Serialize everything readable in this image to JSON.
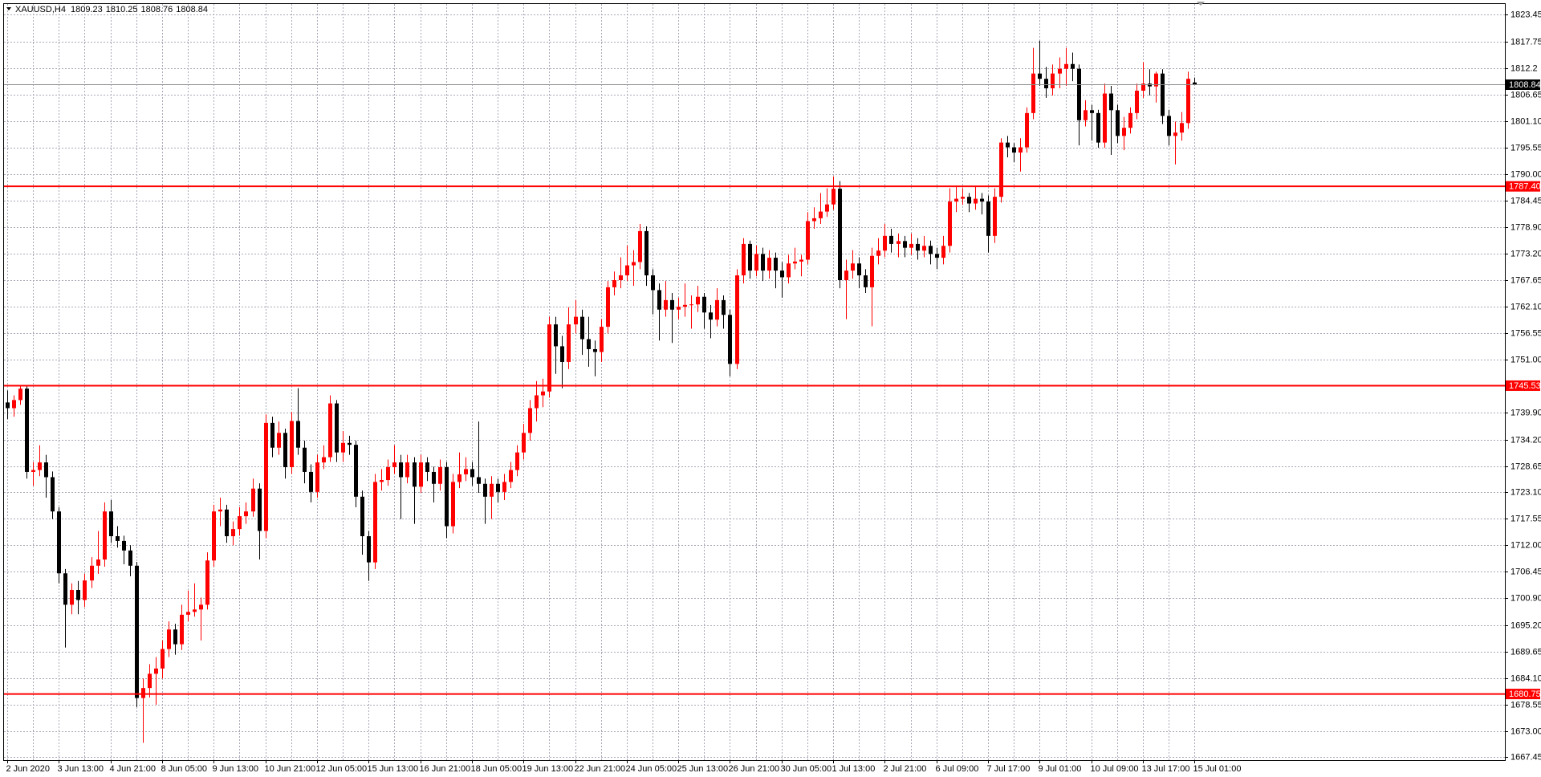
{
  "chart_data": {
    "type": "candlestick",
    "symbol": "XAUUSD,H4",
    "up_color": "#ff0000",
    "down_color": "#000000",
    "grid": true,
    "ylim": [
      1666.85,
      1825.71
    ],
    "yticks": [
      1823.45,
      1817.75,
      1812.2,
      {
        "value": 1806.65,
        "label": "1806.65"
      },
      {
        "value": 1801.1,
        "label": "1801.10"
      },
      1795.55,
      {
        "value": 1790,
        "label": "1790.00"
      },
      1784.45,
      {
        "value": 1778.9,
        "label": "1778.90"
      },
      {
        "value": 1773.2,
        "label": "1773.20"
      },
      1767.65,
      {
        "value": 1762.1,
        "label": "1762.10"
      },
      1756.55,
      {
        "value": 1751,
        "label": "1751.00"
      },
      {
        "value": 1739.9,
        "label": "1739.90"
      },
      {
        "value": 1734.2,
        "label": "1734.20"
      },
      1728.65,
      {
        "value": 1723.1,
        "label": "1723.10"
      },
      1717.55,
      {
        "value": 1712,
        "label": "1712.00"
      },
      1706.45,
      {
        "value": 1700.9,
        "label": "1700.90"
      },
      {
        "value": 1695.2,
        "label": "1695.20"
      },
      1689.65,
      {
        "value": 1684.1,
        "label": "1684.10"
      },
      1678.55,
      {
        "value": 1673,
        "label": "1673.00"
      },
      1667.45
    ],
    "levels": [
      {
        "value": 1787.4,
        "label": "1787.40",
        "color": "#ff0000"
      },
      {
        "value": 1745.53,
        "label": "1745.53",
        "color": "#ff0000"
      },
      {
        "value": 1680.75,
        "label": "1680.75",
        "color": "#ff0000"
      }
    ],
    "categories": [
      "2 Jun 2020",
      null,
      null,
      null,
      null,
      null,
      null,
      null,
      "3 Jun 13:00",
      null,
      null,
      null,
      null,
      null,
      null,
      null,
      "4 Jun 21:00",
      null,
      null,
      null,
      null,
      null,
      null,
      null,
      "8 Jun 05:00",
      null,
      null,
      null,
      null,
      null,
      null,
      null,
      "9 Jun 13:00",
      null,
      null,
      null,
      null,
      null,
      null,
      null,
      "10 Jun 21:00",
      null,
      null,
      null,
      null,
      null,
      null,
      null,
      "12 Jun 05:00",
      null,
      null,
      null,
      null,
      null,
      null,
      null,
      "15 Jun 13:00",
      null,
      null,
      null,
      null,
      null,
      null,
      null,
      "16 Jun 21:00",
      null,
      null,
      null,
      null,
      null,
      null,
      null,
      "18 Jun 05:00",
      null,
      null,
      null,
      null,
      null,
      null,
      null,
      "19 Jun 13:00",
      null,
      null,
      null,
      null,
      null,
      null,
      null,
      "22 Jun 21:00",
      null,
      null,
      null,
      null,
      null,
      null,
      null,
      "24 Jun 05:00",
      null,
      null,
      null,
      null,
      null,
      null,
      null,
      "25 Jun 13:00",
      null,
      null,
      null,
      null,
      null,
      null,
      null,
      "26 Jun 21:00",
      null,
      null,
      null,
      null,
      null,
      null,
      null,
      "30 Jun 05:00",
      null,
      null,
      null,
      null,
      null,
      null,
      null,
      "1 Jul 13:00",
      null,
      null,
      null,
      null,
      null,
      null,
      null,
      "2 Jul 21:00",
      null,
      null,
      null,
      null,
      null,
      null,
      null,
      "6 Jul 09:00",
      null,
      null,
      null,
      null,
      null,
      null,
      null,
      "7 Jul 17:00",
      null,
      null,
      null,
      null,
      null,
      null,
      null,
      "9 Jul 01:00",
      null,
      null,
      null,
      null,
      null,
      null,
      null,
      "10 Jul 09:00",
      null,
      null,
      null,
      null,
      null,
      null,
      null,
      "13 Jul 17:00",
      null,
      null,
      null,
      null,
      null,
      null,
      null,
      "15 Jul 01:00"
    ],
    "ohlc": [
      [
        1742.0,
        1744.5,
        1738.5,
        1740.8
      ],
      [
        1740.8,
        1743.5,
        1739.0,
        1742.5
      ],
      [
        1742.5,
        1745.6,
        1741.5,
        1744.9
      ],
      [
        1744.9,
        1745.5,
        1726.0,
        1727.4
      ],
      [
        1727.4,
        1729.5,
        1724.5,
        1727.8
      ],
      [
        1727.8,
        1733.0,
        1726.5,
        1729.4
      ],
      [
        1729.4,
        1731.0,
        1722.0,
        1726.3
      ],
      [
        1726.3,
        1727.5,
        1717.5,
        1719.1
      ],
      [
        1719.1,
        1720.0,
        1704.0,
        1706.1
      ],
      [
        1706.1,
        1707.0,
        1690.5,
        1699.5
      ],
      [
        1699.5,
        1704.0,
        1697.5,
        1702.6
      ],
      [
        1702.6,
        1704.5,
        1697.5,
        1700.5
      ],
      [
        1700.5,
        1706.0,
        1699.0,
        1704.6
      ],
      [
        1704.6,
        1709.5,
        1703.0,
        1707.7
      ],
      [
        1707.7,
        1715.0,
        1706.0,
        1709.0
      ],
      [
        1709.0,
        1721.0,
        1707.5,
        1719.1
      ],
      [
        1719.1,
        1721.5,
        1712.5,
        1713.9
      ],
      [
        1713.9,
        1716.0,
        1711.5,
        1712.9
      ],
      [
        1712.9,
        1714.0,
        1708.0,
        1710.9
      ],
      [
        1710.9,
        1712.0,
        1705.5,
        1707.7
      ],
      [
        1707.7,
        1708.5,
        1678.0,
        1679.9
      ],
      [
        1679.9,
        1684.0,
        1670.5,
        1682.0
      ],
      [
        1682.0,
        1687.0,
        1680.0,
        1685.0
      ],
      [
        1685.0,
        1688.5,
        1678.5,
        1686.1
      ],
      [
        1686.1,
        1692.0,
        1684.0,
        1690.2
      ],
      [
        1690.2,
        1696.0,
        1688.5,
        1694.3
      ],
      [
        1694.3,
        1695.5,
        1689.0,
        1691.2
      ],
      [
        1691.2,
        1699.5,
        1690.0,
        1697.4
      ],
      [
        1697.4,
        1702.5,
        1696.0,
        1698.0
      ],
      [
        1698.0,
        1704.0,
        1697.0,
        1698.5
      ],
      [
        1698.5,
        1701.0,
        1692.0,
        1699.5
      ],
      [
        1699.5,
        1710.5,
        1698.5,
        1708.8
      ],
      [
        1708.8,
        1720.5,
        1707.5,
        1719.1
      ],
      [
        1719.1,
        1722.0,
        1716.0,
        1719.5
      ],
      [
        1719.5,
        1720.5,
        1712.5,
        1713.9
      ],
      [
        1713.9,
        1717.0,
        1712.0,
        1715.4
      ],
      [
        1715.4,
        1720.0,
        1714.0,
        1718.1
      ],
      [
        1718.1,
        1721.0,
        1716.5,
        1719.1
      ],
      [
        1719.1,
        1726.0,
        1718.0,
        1723.9
      ],
      [
        1723.9,
        1725.0,
        1709.0,
        1715.0
      ],
      [
        1715.0,
        1739.5,
        1713.5,
        1737.7
      ],
      [
        1737.7,
        1739.0,
        1730.5,
        1732.5
      ],
      [
        1732.5,
        1738.0,
        1731.0,
        1735.6
      ],
      [
        1735.6,
        1736.5,
        1726.0,
        1728.4
      ],
      [
        1728.4,
        1740.0,
        1727.0,
        1738.1
      ],
      [
        1738.1,
        1745.0,
        1731.0,
        1732.5
      ],
      [
        1732.5,
        1734.0,
        1725.0,
        1727.4
      ],
      [
        1727.4,
        1729.0,
        1721.0,
        1723.2
      ],
      [
        1723.2,
        1731.0,
        1722.0,
        1729.4
      ],
      [
        1729.4,
        1733.0,
        1728.0,
        1730.5
      ],
      [
        1730.5,
        1743.5,
        1729.5,
        1741.8
      ],
      [
        1741.8,
        1742.5,
        1729.5,
        1731.5
      ],
      [
        1731.5,
        1736.0,
        1729.5,
        1733.5
      ],
      [
        1733.5,
        1735.0,
        1731.0,
        1733.1
      ],
      [
        1733.1,
        1734.0,
        1720.0,
        1722.2
      ],
      [
        1722.2,
        1723.5,
        1710.0,
        1713.9
      ],
      [
        1713.9,
        1715.0,
        1704.5,
        1708.4
      ],
      [
        1708.4,
        1727.0,
        1707.0,
        1725.3
      ],
      [
        1725.3,
        1728.0,
        1723.5,
        1725.7
      ],
      [
        1725.7,
        1730.0,
        1724.5,
        1728.4
      ],
      [
        1728.4,
        1733.0,
        1727.0,
        1729.4
      ],
      [
        1729.4,
        1731.0,
        1717.5,
        1726.3
      ],
      [
        1726.3,
        1731.0,
        1725.0,
        1729.4
      ],
      [
        1729.4,
        1730.5,
        1716.5,
        1724.3
      ],
      [
        1724.3,
        1731.0,
        1723.0,
        1729.4
      ],
      [
        1729.4,
        1730.5,
        1725.5,
        1727.4
      ],
      [
        1727.4,
        1728.5,
        1721.0,
        1724.9
      ],
      [
        1724.9,
        1730.0,
        1723.5,
        1728.4
      ],
      [
        1728.4,
        1729.5,
        1713.5,
        1716.0
      ],
      [
        1716.0,
        1727.0,
        1714.5,
        1725.3
      ],
      [
        1725.3,
        1731.5,
        1724.0,
        1726.9
      ],
      [
        1726.9,
        1730.5,
        1725.5,
        1728.0
      ],
      [
        1728.0,
        1729.5,
        1724.5,
        1726.3
      ],
      [
        1726.3,
        1738.0,
        1723.0,
        1724.9
      ],
      [
        1724.9,
        1726.0,
        1716.5,
        1722.2
      ],
      [
        1722.2,
        1726.5,
        1717.5,
        1724.9
      ],
      [
        1724.9,
        1726.0,
        1721.0,
        1723.2
      ],
      [
        1723.2,
        1727.0,
        1721.5,
        1725.3
      ],
      [
        1725.3,
        1729.5,
        1724.0,
        1727.8
      ],
      [
        1727.8,
        1733.0,
        1726.5,
        1731.5
      ],
      [
        1731.5,
        1737.5,
        1730.0,
        1735.6
      ],
      [
        1735.6,
        1742.5,
        1734.0,
        1740.8
      ],
      [
        1740.8,
        1746.5,
        1738.0,
        1743.5
      ],
      [
        1743.5,
        1747.0,
        1741.0,
        1744.3
      ],
      [
        1744.3,
        1760.0,
        1743.0,
        1758.4
      ],
      [
        1758.4,
        1760.0,
        1748.0,
        1753.8
      ],
      [
        1753.8,
        1756.0,
        1745.0,
        1750.5
      ],
      [
        1750.5,
        1762.0,
        1749.0,
        1758.4
      ],
      [
        1758.4,
        1763.5,
        1756.5,
        1760.0
      ],
      [
        1760.0,
        1761.5,
        1752.0,
        1755.3
      ],
      [
        1755.3,
        1760.0,
        1749.5,
        1753.2
      ],
      [
        1753.2,
        1755.0,
        1747.5,
        1752.6
      ],
      [
        1752.6,
        1759.5,
        1750.5,
        1757.9
      ],
      [
        1757.9,
        1767.5,
        1756.5,
        1766.2
      ],
      [
        1766.2,
        1769.5,
        1764.5,
        1767.7
      ],
      [
        1767.7,
        1772.5,
        1766.0,
        1768.7
      ],
      [
        1768.7,
        1775.0,
        1767.5,
        1770.8
      ],
      [
        1770.8,
        1774.0,
        1766.5,
        1771.5
      ],
      [
        1771.5,
        1779.5,
        1770.0,
        1778.0
      ],
      [
        1778.0,
        1779.0,
        1766.5,
        1768.7
      ],
      [
        1768.7,
        1770.0,
        1760.5,
        1765.6
      ],
      [
        1765.6,
        1767.0,
        1755.0,
        1761.5
      ],
      [
        1761.5,
        1767.5,
        1760.0,
        1763.5
      ],
      [
        1763.5,
        1765.0,
        1754.5,
        1761.5
      ],
      [
        1761.5,
        1764.0,
        1759.5,
        1762.1
      ],
      [
        1762.1,
        1767.0,
        1760.0,
        1762.5
      ],
      [
        1762.5,
        1764.5,
        1757.5,
        1762.6
      ],
      [
        1762.6,
        1766.5,
        1761.0,
        1764.2
      ],
      [
        1764.2,
        1765.0,
        1757.5,
        1760.9
      ],
      [
        1760.9,
        1762.5,
        1755.5,
        1759.4
      ],
      [
        1759.4,
        1766.0,
        1758.0,
        1763.5
      ],
      [
        1763.5,
        1764.5,
        1757.5,
        1760.4
      ],
      [
        1760.4,
        1761.5,
        1747.5,
        1750.1
      ],
      [
        1750.1,
        1770.0,
        1749.0,
        1768.7
      ],
      [
        1768.7,
        1776.5,
        1767.0,
        1775.3
      ],
      [
        1775.3,
        1776.0,
        1768.0,
        1769.7
      ],
      [
        1769.7,
        1775.0,
        1768.5,
        1773.2
      ],
      [
        1773.2,
        1774.5,
        1767.5,
        1769.7
      ],
      [
        1769.7,
        1774.0,
        1768.0,
        1772.4
      ],
      [
        1772.4,
        1773.5,
        1766.0,
        1769.7
      ],
      [
        1769.7,
        1771.5,
        1764.0,
        1768.3
      ],
      [
        1768.3,
        1773.0,
        1767.0,
        1771.2
      ],
      [
        1771.2,
        1774.5,
        1770.0,
        1771.6
      ],
      [
        1771.6,
        1773.0,
        1768.5,
        1772.0
      ],
      [
        1772.0,
        1782.0,
        1771.0,
        1780.1
      ],
      [
        1780.1,
        1783.0,
        1778.5,
        1780.7
      ],
      [
        1780.7,
        1786.0,
        1779.5,
        1782.1
      ],
      [
        1782.1,
        1787.0,
        1781.0,
        1783.6
      ],
      [
        1783.6,
        1789.5,
        1782.5,
        1786.9
      ],
      [
        1786.9,
        1788.5,
        1766.0,
        1767.7
      ],
      [
        1767.7,
        1772.0,
        1759.5,
        1769.7
      ],
      [
        1769.7,
        1774.0,
        1768.0,
        1771.2
      ],
      [
        1771.2,
        1772.5,
        1766.0,
        1768.7
      ],
      [
        1768.7,
        1770.0,
        1765.0,
        1766.2
      ],
      [
        1766.2,
        1774.5,
        1758.0,
        1772.8
      ],
      [
        1772.8,
        1776.5,
        1771.0,
        1773.9
      ],
      [
        1773.9,
        1779.5,
        1772.5,
        1777.0
      ],
      [
        1777.0,
        1778.5,
        1773.5,
        1775.3
      ],
      [
        1775.3,
        1777.5,
        1772.5,
        1775.9
      ],
      [
        1775.9,
        1777.0,
        1772.5,
        1774.5
      ],
      [
        1774.5,
        1777.5,
        1773.0,
        1775.3
      ],
      [
        1775.3,
        1776.5,
        1772.0,
        1773.9
      ],
      [
        1773.9,
        1777.0,
        1772.5,
        1774.9
      ],
      [
        1774.9,
        1776.0,
        1771.0,
        1773.2
      ],
      [
        1773.2,
        1774.5,
        1770.0,
        1772.4
      ],
      [
        1772.4,
        1777.0,
        1771.0,
        1774.9
      ],
      [
        1774.9,
        1787.0,
        1773.5,
        1784.2
      ],
      [
        1784.2,
        1787.5,
        1782.0,
        1784.8
      ],
      [
        1784.8,
        1787.0,
        1783.5,
        1785.2
      ],
      [
        1785.2,
        1786.0,
        1782.0,
        1783.8
      ],
      [
        1783.8,
        1787.5,
        1782.5,
        1784.8
      ],
      [
        1784.8,
        1786.0,
        1781.5,
        1784.2
      ],
      [
        1784.2,
        1785.5,
        1773.5,
        1777.0
      ],
      [
        1777.0,
        1787.0,
        1775.5,
        1785.2
      ],
      [
        1785.2,
        1797.5,
        1784.0,
        1796.6
      ],
      [
        1796.6,
        1798.0,
        1793.5,
        1795.6
      ],
      [
        1795.6,
        1796.5,
        1792.5,
        1794.5
      ],
      [
        1794.5,
        1797.5,
        1790.5,
        1795.6
      ],
      [
        1795.6,
        1804.0,
        1794.5,
        1802.8
      ],
      [
        1802.8,
        1816.5,
        1801.5,
        1811.1
      ],
      [
        1811.1,
        1818.0,
        1808.5,
        1810.0
      ],
      [
        1810.0,
        1812.5,
        1806.0,
        1808.0
      ],
      [
        1808.0,
        1813.0,
        1806.5,
        1811.1
      ],
      [
        1811.1,
        1814.5,
        1808.0,
        1812.1
      ],
      [
        1812.1,
        1816.5,
        1808.5,
        1813.1
      ],
      [
        1813.1,
        1815.5,
        1809.5,
        1812.1
      ],
      [
        1812.1,
        1813.0,
        1796.0,
        1801.3
      ],
      [
        1801.3,
        1805.5,
        1800.0,
        1803.4
      ],
      [
        1803.4,
        1804.5,
        1797.0,
        1802.8
      ],
      [
        1802.8,
        1803.5,
        1795.5,
        1796.6
      ],
      [
        1796.6,
        1809.0,
        1795.5,
        1806.9
      ],
      [
        1806.9,
        1808.5,
        1794.0,
        1803.4
      ],
      [
        1803.4,
        1804.5,
        1796.5,
        1798.0
      ],
      [
        1798.0,
        1802.0,
        1795.0,
        1799.7
      ],
      [
        1799.7,
        1804.0,
        1798.5,
        1802.8
      ],
      [
        1802.8,
        1809.0,
        1801.5,
        1807.5
      ],
      [
        1807.5,
        1813.5,
        1806.0,
        1809.0
      ],
      [
        1809.0,
        1812.0,
        1806.5,
        1808.4
      ],
      [
        1808.4,
        1811.5,
        1805.0,
        1811.1
      ],
      [
        1811.1,
        1812.0,
        1800.5,
        1802.2
      ],
      [
        1802.2,
        1803.5,
        1796.0,
        1798.0
      ],
      [
        1798.0,
        1801.0,
        1792.0,
        1798.7
      ],
      [
        1798.7,
        1803.0,
        1797.0,
        1800.7
      ],
      [
        1800.7,
        1811.5,
        1799.5,
        1810.0
      ],
      [
        1809.23,
        1810.25,
        1808.76,
        1808.84
      ]
    ]
  }
}
